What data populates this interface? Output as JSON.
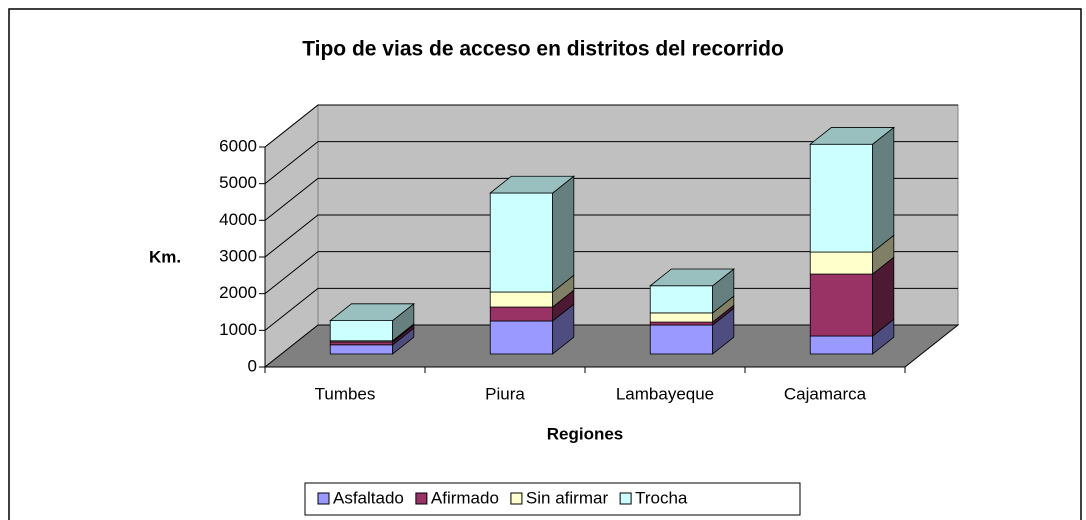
{
  "chart_data": {
    "type": "bar3d_stacked",
    "title": "Tipo de vias de acceso en distritos del recorrido",
    "x_label": "Regiones",
    "y_label": "Km.",
    "categories": [
      "Tumbes",
      "Piura",
      "Lambayeque",
      "Cajamarca"
    ],
    "series": [
      {
        "name": "Asfaltado",
        "color": "#9999ff",
        "values": [
          250,
          900,
          790,
          490
        ]
      },
      {
        "name": "Afirmado",
        "color": "#993366",
        "values": [
          80,
          380,
          80,
          1690
        ]
      },
      {
        "name": "Sin afirmar",
        "color": "#ffffcc",
        "values": [
          30,
          410,
          250,
          600
        ]
      },
      {
        "name": "Trocha",
        "color": "#ccffff",
        "values": [
          550,
          2700,
          740,
          2940
        ]
      }
    ],
    "ylim": [
      0,
      6000
    ],
    "yticks": [
      0,
      1000,
      2000,
      3000,
      4000,
      5000,
      6000
    ],
    "grid": true,
    "legend": "bottom"
  }
}
